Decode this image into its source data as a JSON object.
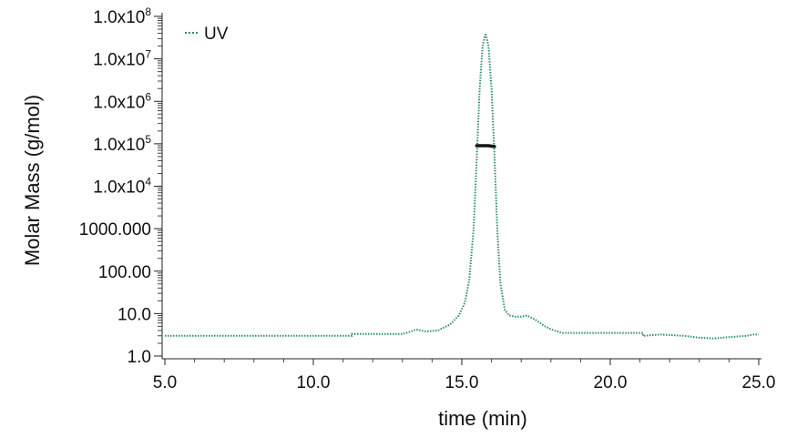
{
  "chart_data": {
    "type": "line",
    "xlabel": "time (min)",
    "ylabel": "Molar Mass (g/mol)",
    "xlim": [
      5.0,
      25.0
    ],
    "ylim": [
      1.0,
      100000000.0
    ],
    "y_scale": "log",
    "x_ticks": [
      {
        "value": 5.0,
        "label": "5.0"
      },
      {
        "value": 10.0,
        "label": "10.0"
      },
      {
        "value": 15.0,
        "label": "15.0"
      },
      {
        "value": 20.0,
        "label": "20.0"
      },
      {
        "value": 25.0,
        "label": "25.0"
      }
    ],
    "y_ticks": [
      {
        "value": 1,
        "label": "1.0"
      },
      {
        "value": 10,
        "label": "10.0"
      },
      {
        "value": 100,
        "label": "100.00"
      },
      {
        "value": 1000,
        "label": "1000.000"
      },
      {
        "value": 10000,
        "label": "1.0x10",
        "sup": "4"
      },
      {
        "value": 100000,
        "label": "1.0x10",
        "sup": "5"
      },
      {
        "value": 1000000,
        "label": "1.0x10",
        "sup": "6"
      },
      {
        "value": 10000000,
        "label": "1.0x10",
        "sup": "7"
      },
      {
        "value": 100000000,
        "label": "1.0x10",
        "sup": "8"
      }
    ],
    "legend": {
      "label": "UV",
      "position": "top-left"
    },
    "series": [
      {
        "name": "UV",
        "color": "#2e8b73",
        "style": "dotted",
        "x": [
          5.0,
          11.3,
          11.3,
          13.0,
          13.3,
          13.45,
          13.8,
          14.2,
          14.6,
          14.9,
          15.1,
          15.25,
          15.4,
          15.5,
          15.6,
          15.7,
          15.8,
          15.9,
          16.0,
          16.1,
          16.2,
          16.3,
          16.45,
          16.6,
          16.8,
          17.0,
          17.2,
          17.5,
          17.8,
          18.1,
          18.4,
          19.0,
          20.0,
          21.1,
          21.1,
          21.7,
          22.5,
          23.0,
          23.5,
          24.0,
          24.6,
          24.8,
          25.0
        ],
        "y": [
          3.0,
          3.0,
          3.3,
          3.3,
          3.8,
          4.2,
          3.8,
          4.0,
          5.5,
          9.0,
          18.0,
          60.0,
          1000.0,
          40000.0,
          2000000.0,
          20000000.0,
          40000000.0,
          20000000.0,
          2000000.0,
          50000.0,
          800.0,
          50.0,
          12.0,
          9.0,
          8.5,
          8.5,
          9.0,
          7.0,
          5.0,
          4.0,
          3.5,
          3.5,
          3.5,
          3.5,
          3.0,
          3.2,
          3.0,
          2.7,
          2.6,
          2.8,
          3.0,
          3.2,
          3.2
        ]
      },
      {
        "name": "Molar Mass",
        "color": "#111111",
        "style": "solid",
        "x": [
          15.5,
          15.6,
          15.7,
          15.8,
          15.9,
          16.0,
          16.1
        ],
        "y": [
          90000.0,
          90000.0,
          90000.0,
          90000.0,
          90000.0,
          88000.0,
          86000.0
        ]
      }
    ]
  }
}
